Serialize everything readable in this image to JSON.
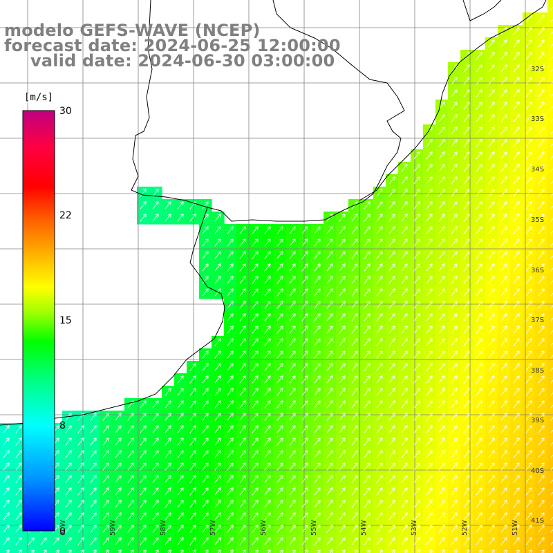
{
  "title": {
    "line1": "modelo GEFS-WAVE (NCEP)",
    "line2": "forecast date: 2024-06-25 12:00:00",
    "line3": "valid date: 2024-06-30 03:00:00"
  },
  "colorbar": {
    "unit": "[m/s]",
    "min": 0,
    "max": 30,
    "ticks": [
      "30",
      "22",
      "15",
      "8",
      "0"
    ],
    "tick_values": [
      30,
      22,
      15,
      8,
      0
    ],
    "colors": [
      "#0000ff",
      "#00a0ff",
      "#00ffff",
      "#00ff80",
      "#00ff00",
      "#80ff00",
      "#ffff00",
      "#ffa000",
      "#ff4000",
      "#ff0000",
      "#e00060",
      "#c00080"
    ]
  },
  "latitude_labels": [
    "32S",
    "33S",
    "34S",
    "35S",
    "36S",
    "37S",
    "38S",
    "39S",
    "40S",
    "41S"
  ],
  "longitude_labels": [
    "60W",
    "59W",
    "58W",
    "57W",
    "56W",
    "55W",
    "54W",
    "53W",
    "52W",
    "51W"
  ],
  "map_extent": {
    "lon_min": -60.5,
    "lon_max": -50.5,
    "lat_min": -41.5,
    "lat_max": -31.5
  },
  "wind_field_colors": {
    "land": "#ffffff",
    "coastline": "#000000",
    "grid": "#808080",
    "arrows": "#ffffff"
  }
}
